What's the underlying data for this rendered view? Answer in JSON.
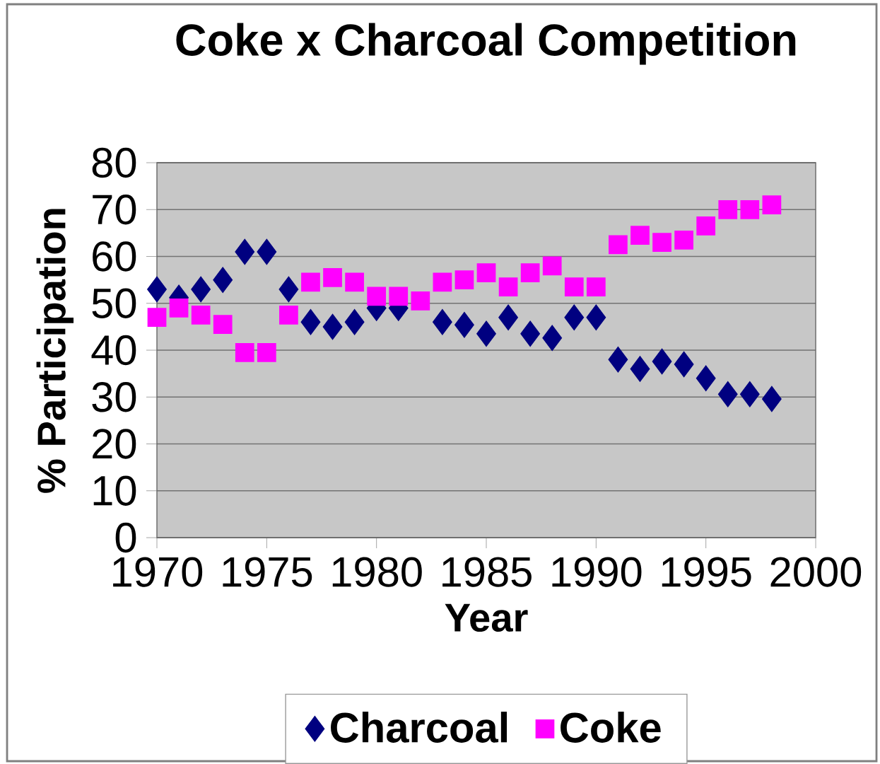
{
  "chart_data": {
    "type": "scatter",
    "title": "Coke x Charcoal Competition",
    "xlabel": "Year",
    "ylabel": "% Participation",
    "x": [
      1970,
      1971,
      1972,
      1973,
      1974,
      1975,
      1976,
      1977,
      1978,
      1979,
      1980,
      1981,
      1982,
      1983,
      1984,
      1985,
      1986,
      1987,
      1988,
      1989,
      1990,
      1991,
      1992,
      1993,
      1994,
      1995,
      1996,
      1997,
      1998
    ],
    "series": [
      {
        "name": "Charcoal",
        "color": "#000080",
        "marker": "diamond",
        "values": [
          53,
          51.2,
          53,
          55,
          61,
          61,
          53,
          46,
          45,
          46,
          49,
          49,
          null,
          46,
          45.4,
          43.5,
          47,
          43.5,
          42.6,
          47,
          47,
          38,
          36,
          37.6,
          37,
          34,
          30.6,
          30.6,
          29.6
        ]
      },
      {
        "name": "Coke",
        "color": "#ff00ff",
        "marker": "square",
        "values": [
          47,
          49,
          47.5,
          45.5,
          39.5,
          39.5,
          47.5,
          54.5,
          55.5,
          54.5,
          51.5,
          51.5,
          50.5,
          54.5,
          55,
          56.5,
          53.5,
          56.5,
          58,
          53.5,
          53.5,
          62.5,
          64.5,
          63,
          63.5,
          66.5,
          70,
          70,
          71
        ]
      }
    ],
    "xlim": [
      1970,
      2000
    ],
    "xticks": [
      1970,
      1975,
      1980,
      1985,
      1990,
      1995,
      2000
    ],
    "ylim": [
      0,
      80
    ],
    "yticks": [
      0,
      10,
      20,
      30,
      40,
      50,
      60,
      70,
      80
    ],
    "grid": "y",
    "legend": "bottom"
  }
}
